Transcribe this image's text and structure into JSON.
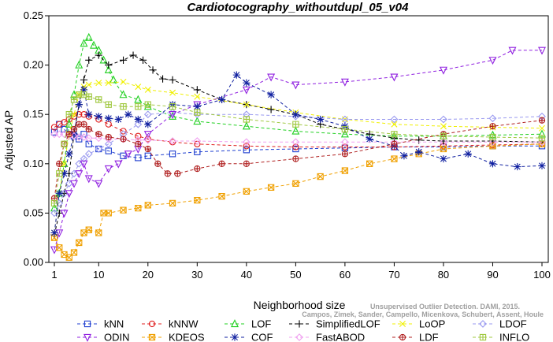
{
  "chart_data": {
    "type": "line",
    "title": "Cardiotocography_withoutdupl_05_v04",
    "xlabel": "Neighborhood size",
    "ylabel": "Adjusted AP",
    "xlim": [
      1,
      100
    ],
    "ylim": [
      0,
      0.25
    ],
    "xticks": [
      1,
      10,
      20,
      30,
      40,
      50,
      60,
      70,
      80,
      90,
      100
    ],
    "xtick_labels": [
      "1",
      "10",
      "20",
      "30",
      "40",
      "50",
      "60",
      "70",
      "80",
      "90",
      "100"
    ],
    "yticks": [
      0,
      0.05,
      0.1,
      0.15,
      0.2,
      0.25
    ],
    "ytick_labels": [
      "0.00",
      "0.05",
      "0.10",
      "0.15",
      "0.20",
      "0.25"
    ],
    "grid": false,
    "legend_position": "bottom",
    "watermark": [
      "Unsupervised Outlier Detection. DAMI, 2015.",
      "Campos, Zimek, Sander, Campello, Micenkova, Schubert, Assent, Houle"
    ],
    "series": [
      {
        "name": "kNN",
        "color": "#1f3fd0",
        "marker": "square",
        "x": [
          1,
          2,
          3,
          4,
          5,
          6,
          7,
          8,
          10,
          12,
          15,
          18,
          20,
          25,
          30,
          40,
          50,
          60,
          70,
          80,
          90,
          100
        ],
        "y": [
          0.132,
          0.14,
          0.135,
          0.13,
          0.128,
          0.125,
          0.13,
          0.12,
          0.115,
          0.113,
          0.108,
          0.106,
          0.108,
          0.11,
          0.112,
          0.114,
          0.115,
          0.116,
          0.117,
          0.117,
          0.118,
          0.118
        ]
      },
      {
        "name": "kNNW",
        "color": "#e02020",
        "marker": "circle",
        "x": [
          1,
          2,
          3,
          4,
          5,
          6,
          7,
          8,
          10,
          12,
          15,
          18,
          20,
          25,
          30,
          40,
          50,
          60,
          70,
          80,
          90,
          100
        ],
        "y": [
          0.137,
          0.14,
          0.142,
          0.145,
          0.148,
          0.15,
          0.15,
          0.148,
          0.145,
          0.14,
          0.133,
          0.128,
          0.125,
          0.122,
          0.12,
          0.118,
          0.117,
          0.117,
          0.117,
          0.118,
          0.119,
          0.12
        ]
      },
      {
        "name": "LOF",
        "color": "#22d022",
        "marker": "triangle-up",
        "x": [
          1,
          2,
          3,
          4,
          5,
          6,
          7,
          8,
          9,
          10,
          11,
          12,
          13,
          15,
          18,
          20,
          25,
          30,
          40,
          50,
          60,
          70,
          80,
          90,
          100
        ],
        "y": [
          0.055,
          0.07,
          0.1,
          0.14,
          0.17,
          0.2,
          0.222,
          0.228,
          0.22,
          0.215,
          0.205,
          0.195,
          0.185,
          0.17,
          0.165,
          0.158,
          0.148,
          0.143,
          0.138,
          0.133,
          0.13,
          0.128,
          0.128,
          0.129,
          0.13
        ]
      },
      {
        "name": "SimplifiedLOF",
        "color": "#000000",
        "marker": "plus",
        "x": [
          1,
          2,
          3,
          4,
          5,
          6,
          7,
          8,
          10,
          12,
          15,
          17,
          19,
          21,
          23,
          25,
          30,
          35,
          40,
          45,
          50,
          55,
          60,
          65,
          70,
          75,
          80,
          90,
          100
        ],
        "y": [
          0.028,
          0.05,
          0.07,
          0.09,
          0.13,
          0.16,
          0.185,
          0.205,
          0.21,
          0.2,
          0.205,
          0.21,
          0.205,
          0.195,
          0.186,
          0.185,
          0.175,
          0.165,
          0.16,
          0.155,
          0.15,
          0.14,
          0.135,
          0.13,
          0.126,
          0.124,
          0.123,
          0.123,
          0.122
        ]
      },
      {
        "name": "LoOP",
        "color": "#f0f000",
        "marker": "x",
        "x": [
          1,
          2,
          3,
          4,
          5,
          6,
          7,
          8,
          10,
          12,
          15,
          18,
          20,
          25,
          30,
          40,
          50,
          60,
          70,
          80,
          90,
          100
        ],
        "y": [
          0.03,
          0.07,
          0.1,
          0.13,
          0.15,
          0.17,
          0.178,
          0.18,
          0.182,
          0.182,
          0.183,
          0.178,
          0.175,
          0.172,
          0.168,
          0.16,
          0.152,
          0.145,
          0.14,
          0.138,
          0.137,
          0.136
        ]
      },
      {
        "name": "LDOF",
        "color": "#9a9af0",
        "marker": "diamond",
        "x": [
          1,
          2,
          3,
          4,
          5,
          6,
          7,
          8,
          10,
          12,
          15,
          18,
          20,
          25,
          30,
          40,
          50,
          60,
          70,
          80,
          90,
          100
        ],
        "y": [
          0.05,
          0.06,
          0.07,
          0.08,
          0.09,
          0.1,
          0.105,
          0.11,
          0.115,
          0.12,
          0.13,
          0.14,
          0.15,
          0.152,
          0.15,
          0.15,
          0.148,
          0.145,
          0.145,
          0.145,
          0.146,
          0.148
        ]
      },
      {
        "name": "ODIN",
        "color": "#9020e0",
        "marker": "triangle-down",
        "x": [
          1,
          2,
          3,
          4,
          5,
          6,
          7,
          8,
          10,
          12,
          14,
          16,
          18,
          20,
          25,
          30,
          40,
          45,
          50,
          60,
          70,
          80,
          90,
          94,
          100
        ],
        "y": [
          0.013,
          0.03,
          0.05,
          0.07,
          0.08,
          0.09,
          0.1,
          0.085,
          0.08,
          0.095,
          0.1,
          0.11,
          0.115,
          0.13,
          0.15,
          0.16,
          0.175,
          0.188,
          0.18,
          0.183,
          0.188,
          0.195,
          0.205,
          0.215,
          0.215
        ]
      },
      {
        "name": "KDEOS",
        "color": "#f0a000",
        "marker": "square-x",
        "x": [
          1,
          2,
          3,
          4,
          5,
          6,
          7,
          8,
          10,
          11,
          12,
          15,
          18,
          20,
          25,
          30,
          35,
          40,
          45,
          50,
          55,
          60,
          65,
          70,
          75,
          80,
          90,
          100
        ],
        "y": [
          0.025,
          0.015,
          0.008,
          0.005,
          0.01,
          0.02,
          0.03,
          0.033,
          0.03,
          0.05,
          0.05,
          0.053,
          0.055,
          0.058,
          0.06,
          0.063,
          0.067,
          0.072,
          0.076,
          0.08,
          0.087,
          0.093,
          0.1,
          0.105,
          0.11,
          0.115,
          0.118,
          0.12
        ]
      },
      {
        "name": "COF",
        "color": "#1020a0",
        "marker": "star",
        "x": [
          1,
          2,
          3,
          4,
          5,
          6,
          7,
          8,
          10,
          12,
          14,
          16,
          18,
          20,
          25,
          30,
          35,
          38,
          40,
          45,
          50,
          55,
          60,
          65,
          70,
          72,
          75,
          80,
          85,
          90,
          95,
          100
        ],
        "y": [
          0.03,
          0.07,
          0.09,
          0.11,
          0.13,
          0.16,
          0.175,
          0.15,
          0.148,
          0.146,
          0.145,
          0.15,
          0.145,
          0.14,
          0.16,
          0.158,
          0.165,
          0.19,
          0.182,
          0.17,
          0.15,
          0.145,
          0.138,
          0.125,
          0.118,
          0.108,
          0.112,
          0.105,
          0.11,
          0.1,
          0.097,
          0.098
        ]
      },
      {
        "name": "FastABOD",
        "color": "#f0a0f0",
        "marker": "diamond",
        "x": [
          1,
          2,
          3,
          4,
          5,
          6,
          7,
          8,
          10,
          12,
          15,
          18,
          20,
          25,
          30,
          40,
          50,
          60,
          70,
          80,
          90,
          100
        ],
        "y": [
          0.13,
          0.13,
          0.13,
          0.128,
          0.128,
          0.127,
          0.127,
          0.126,
          0.126,
          0.125,
          0.125,
          0.124,
          0.124,
          0.123,
          0.123,
          0.122,
          0.122,
          0.122,
          0.122,
          0.122,
          0.122,
          0.122
        ]
      },
      {
        "name": "LDF",
        "color": "#b02020",
        "marker": "circle-plus",
        "x": [
          1,
          2,
          3,
          4,
          5,
          6,
          7,
          8,
          10,
          12,
          15,
          18,
          20,
          22,
          24,
          26,
          30,
          35,
          40,
          50,
          60,
          70,
          80,
          90,
          100
        ],
        "y": [
          0.065,
          0.1,
          0.12,
          0.13,
          0.135,
          0.14,
          0.14,
          0.135,
          0.13,
          0.127,
          0.125,
          0.12,
          0.115,
          0.1,
          0.09,
          0.09,
          0.095,
          0.1,
          0.1,
          0.105,
          0.11,
          0.12,
          0.13,
          0.138,
          0.144
        ]
      },
      {
        "name": "INFLO",
        "color": "#a0c840",
        "marker": "square-cross",
        "x": [
          1,
          2,
          3,
          4,
          5,
          6,
          7,
          8,
          10,
          12,
          15,
          18,
          20,
          25,
          30,
          40,
          50,
          60,
          70,
          80,
          90,
          100
        ],
        "y": [
          0.06,
          0.09,
          0.12,
          0.15,
          0.165,
          0.17,
          0.17,
          0.168,
          0.165,
          0.16,
          0.158,
          0.158,
          0.16,
          0.158,
          0.152,
          0.145,
          0.14,
          0.135,
          0.13,
          0.128,
          0.127,
          0.126
        ]
      }
    ]
  }
}
